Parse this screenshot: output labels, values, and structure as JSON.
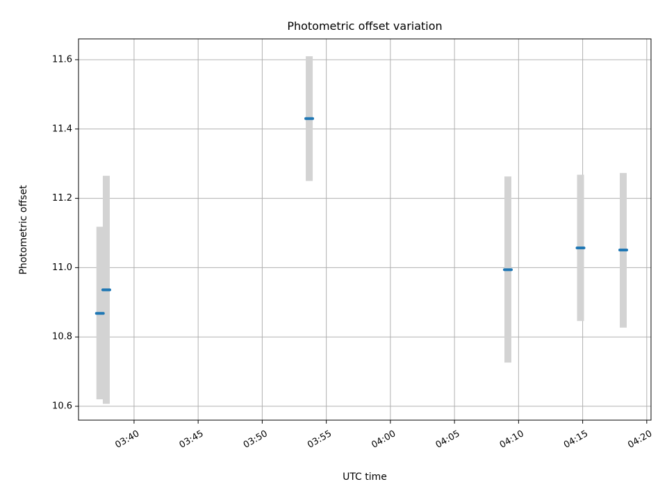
{
  "chart_data": {
    "type": "scatter",
    "title": "Photometric offset variation",
    "xlabel": "UTC time",
    "ylabel": "Photometric offset",
    "x_tick_labels": [
      "03:40",
      "03:45",
      "03:50",
      "03:55",
      "04:00",
      "04:05",
      "04:10",
      "04:15",
      "04:20"
    ],
    "y_tick_labels": [
      "10.6",
      "10.8",
      "11.0",
      "11.2",
      "11.4",
      "11.6"
    ],
    "xlim": [
      "03:35:40",
      "04:20:20"
    ],
    "ylim": [
      10.56,
      11.66
    ],
    "x_ticks": [
      "03:40",
      "03:45",
      "03:50",
      "03:55",
      "04:00",
      "04:05",
      "04:10",
      "04:15",
      "04:20"
    ],
    "y_ticks": [
      10.6,
      10.8,
      11.0,
      11.2,
      11.4,
      11.6
    ],
    "grid": true,
    "point_color": "#1f77b4",
    "errorbar_color": "#d3d3d3",
    "points": [
      {
        "x": "03:37:20",
        "y": 10.868,
        "ylow": 10.62,
        "yhigh": 11.118
      },
      {
        "x": "03:37:50",
        "y": 10.936,
        "ylow": 10.607,
        "yhigh": 11.265
      },
      {
        "x": "03:53:40",
        "y": 11.43,
        "ylow": 11.25,
        "yhigh": 11.61
      },
      {
        "x": "04:09:10",
        "y": 10.994,
        "ylow": 10.726,
        "yhigh": 11.263
      },
      {
        "x": "04:14:50",
        "y": 11.057,
        "ylow": 10.846,
        "yhigh": 11.268
      },
      {
        "x": "04:18:10",
        "y": 11.051,
        "ylow": 10.827,
        "yhigh": 11.273
      }
    ]
  }
}
